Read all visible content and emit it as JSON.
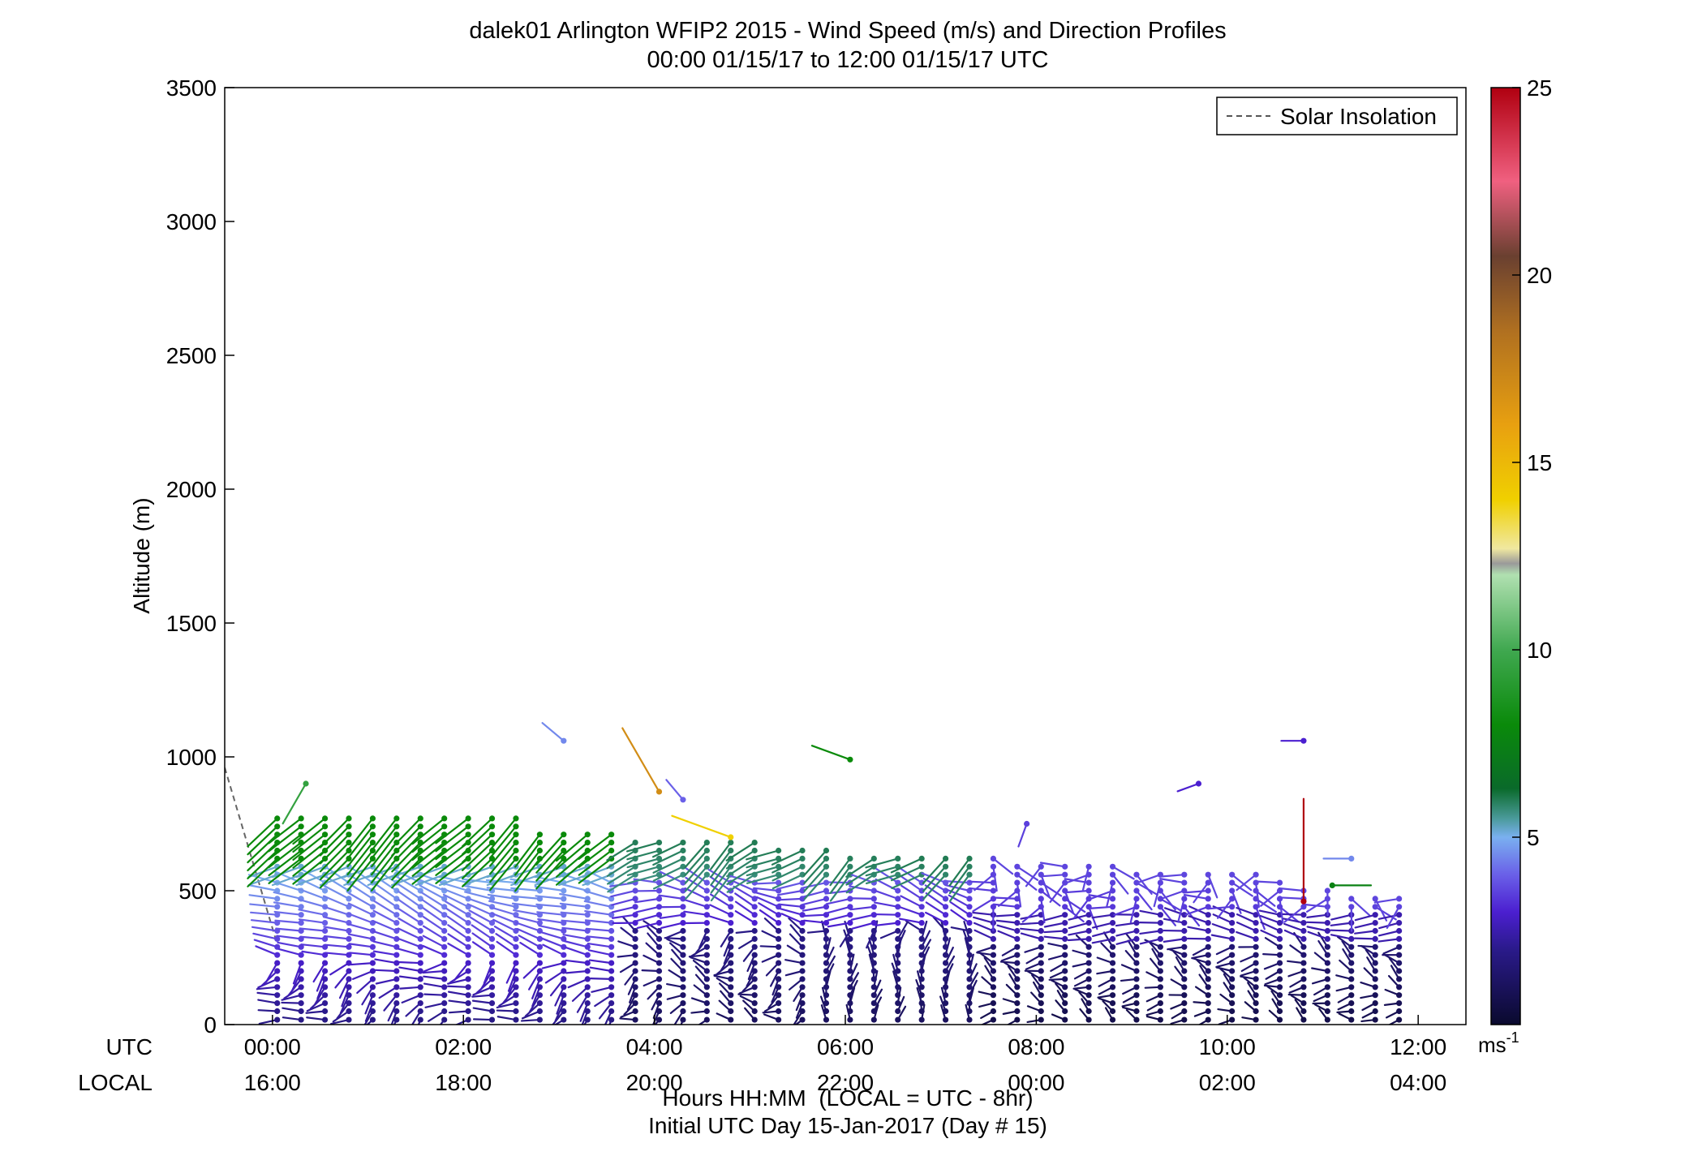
{
  "chart_data": {
    "type": "scatter",
    "title": "dalek01 Arlington WFIP2 2015 - Wind Speed (m/s) and Direction Profiles",
    "subtitle": "00:00 01/15/17 to 12:00 01/15/17  UTC",
    "ylabel": "Altitude (m)",
    "xlabel": "Hours HH:MM  (LOCAL = UTC - 8hr)",
    "xlabel2": "Initial UTC Day 15-Jan-2017 (Day # 15)",
    "xlim": [
      -0.5,
      12.5
    ],
    "ylim": [
      0,
      3500
    ],
    "y_ticks": [
      0,
      500,
      1000,
      1500,
      2000,
      2500,
      3000,
      3500
    ],
    "x_ticks_utc_hours": [
      0,
      2,
      4,
      6,
      8,
      10,
      12
    ],
    "x_tick_labels_utc": [
      "00:00",
      "02:00",
      "04:00",
      "06:00",
      "08:00",
      "10:00",
      "12:00"
    ],
    "x_tick_labels_local": [
      "16:00",
      "18:00",
      "20:00",
      "22:00",
      "00:00",
      "02:00",
      "04:00"
    ],
    "utc_row_label": "UTC",
    "local_row_label": "LOCAL",
    "legend": {
      "position": "top-right",
      "entries": [
        "Solar Insolation"
      ]
    },
    "solar_insolation_line": {
      "x": [
        -0.5,
        0.05
      ],
      "y": [
        960,
        300
      ],
      "color": "#666666"
    },
    "colorbar": {
      "min": 0,
      "max": 25,
      "ticks": [
        5,
        10,
        15,
        20,
        25
      ],
      "unit_label": "ms",
      "unit_exponent": "-1",
      "stops": [
        {
          "v": 0,
          "c": "#0a0a2e"
        },
        {
          "v": 2,
          "c": "#2a1a8a"
        },
        {
          "v": 3,
          "c": "#4b1fd0"
        },
        {
          "v": 4,
          "c": "#6a60e8"
        },
        {
          "v": 5,
          "c": "#7ab0f0"
        },
        {
          "v": 5.5,
          "c": "#4a9a9a"
        },
        {
          "v": 6.3,
          "c": "#0a6a2a"
        },
        {
          "v": 8,
          "c": "#0a8a0a"
        },
        {
          "v": 10,
          "c": "#40a850"
        },
        {
          "v": 12,
          "c": "#b0e0b0"
        },
        {
          "v": 12.3,
          "c": "#9a9a9a"
        },
        {
          "v": 12.7,
          "c": "#f0e8a0"
        },
        {
          "v": 14,
          "c": "#f0d000"
        },
        {
          "v": 16,
          "c": "#e8a010"
        },
        {
          "v": 18.5,
          "c": "#b07020"
        },
        {
          "v": 20.5,
          "c": "#6a4030"
        },
        {
          "v": 22.5,
          "c": "#f06080"
        },
        {
          "v": 25,
          "c": "#b00010"
        }
      ]
    },
    "barb_heights_m": [
      18,
      50,
      80,
      110,
      140,
      170,
      200,
      230,
      260,
      290,
      320,
      350,
      380,
      410,
      440,
      470,
      500,
      530,
      560,
      590,
      620,
      650,
      680,
      710,
      740,
      770
    ],
    "profile_times_h": [
      0.05,
      0.3,
      0.55,
      0.8,
      1.05,
      1.3,
      1.55,
      1.8,
      2.05,
      2.3,
      2.55,
      2.8,
      3.05,
      3.3,
      3.55,
      3.8,
      4.05,
      4.3,
      4.55,
      4.8,
      5.05,
      5.3,
      5.55,
      5.8,
      6.05,
      6.3,
      6.55,
      6.8,
      7.05,
      7.3,
      7.55,
      7.8,
      8.05,
      8.3,
      8.55,
      8.8,
      9.05,
      9.3,
      9.55,
      9.8,
      10.05,
      10.3,
      10.55,
      10.8,
      11.05,
      11.3,
      11.55,
      11.8
    ],
    "profile_tops_m": [
      780,
      780,
      780,
      780,
      780,
      780,
      780,
      780,
      780,
      780,
      780,
      720,
      720,
      710,
      710,
      690,
      690,
      690,
      690,
      690,
      680,
      660,
      660,
      650,
      640,
      640,
      640,
      620,
      620,
      620,
      620,
      610,
      600,
      600,
      600,
      600,
      580,
      560,
      560,
      560,
      560,
      560,
      540,
      500,
      500,
      480,
      470,
      470
    ],
    "isolated_points": [
      {
        "t": 0.35,
        "z": 900,
        "speed": 9.5,
        "dir": 210
      },
      {
        "t": 3.05,
        "z": 1060,
        "speed": 4.5,
        "dir": 310
      },
      {
        "t": 4.3,
        "z": 840,
        "speed": 4,
        "dir": 320
      },
      {
        "t": 4.05,
        "z": 870,
        "speed": 17,
        "dir": 330
      },
      {
        "t": 4.8,
        "z": 700,
        "speed": 14,
        "dir": 290
      },
      {
        "t": 6.05,
        "z": 990,
        "speed": 8,
        "dir": 290
      },
      {
        "t": 7.9,
        "z": 750,
        "speed": 3.5,
        "dir": 200
      },
      {
        "t": 9.7,
        "z": 900,
        "speed": 3,
        "dir": 250
      },
      {
        "t": 10.8,
        "z": 1060,
        "speed": 3,
        "dir": 270
      },
      {
        "t": 10.8,
        "z": 460,
        "speed": 25,
        "dir": 0
      },
      {
        "t": 11.3,
        "z": 620,
        "speed": 4.5,
        "dir": 270
      },
      {
        "t": 11.1,
        "z": 520,
        "speed": 7.5,
        "dir": 90
      }
    ]
  }
}
